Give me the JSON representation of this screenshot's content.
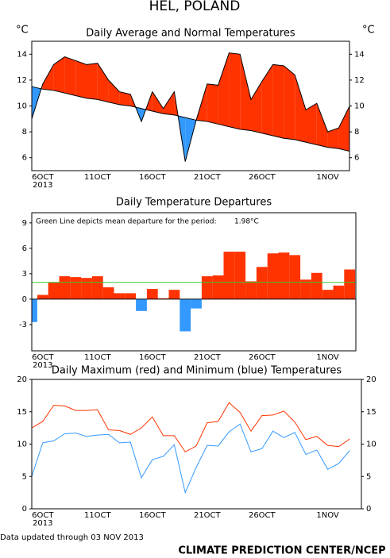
{
  "title": "HEL, POLAND",
  "chart_data": [
    {
      "type": "fill_between",
      "title": "Daily Average and Normal Temperatures",
      "y_label": "°C",
      "y2_label": "°C",
      "categories": [
        null,
        "6OCT",
        null,
        null,
        null,
        null,
        "11OCT",
        null,
        null,
        null,
        null,
        "16OCT",
        null,
        null,
        null,
        null,
        "21OCT",
        null,
        null,
        null,
        null,
        "26OCT",
        null,
        null,
        null,
        null,
        null,
        "1NOV",
        null,
        null
      ],
      "year_label": "2013",
      "series": [
        {
          "color": "#000000",
          "values": [
            9.0,
            11.7,
            13.2,
            13.8,
            13.5,
            13.2,
            13.3,
            12.0,
            11.1,
            10.9,
            8.8,
            11.1,
            9.8,
            11.1,
            5.7,
            8.9,
            11.7,
            11.6,
            14.1,
            14.0,
            10.5,
            11.9,
            13.2,
            13.1,
            12.4,
            9.7,
            10.2,
            8.0,
            8.3,
            10.0
          ]
        },
        {
          "color": "#000000",
          "values": [
            11.5,
            11.3,
            11.2,
            11.0,
            10.8,
            10.6,
            10.5,
            10.3,
            10.1,
            10.0,
            9.8,
            9.6,
            9.4,
            9.3,
            9.1,
            8.9,
            8.8,
            8.6,
            8.4,
            8.2,
            8.1,
            7.9,
            7.7,
            7.5,
            7.4,
            7.2,
            7.0,
            6.8,
            6.7,
            6.5
          ]
        }
      ],
      "above_color": "#ff3300",
      "below_color": "#3399ff",
      "ylim": [
        5,
        15
      ],
      "yticks": [
        6,
        8,
        10,
        12,
        14
      ],
      "right_ticks": true
    },
    {
      "type": "bar",
      "title": "Daily Temperature Departures",
      "annotation": "Green Line depicts mean departure for the period:",
      "mean_departure": {
        "value": 1.98,
        "label": "1.98°C"
      },
      "mean_color": "#33cc33",
      "categories": [
        null,
        "6OCT",
        null,
        null,
        null,
        null,
        "11OCT",
        null,
        null,
        null,
        null,
        "16OCT",
        null,
        null,
        null,
        null,
        "21OCT",
        null,
        null,
        null,
        null,
        "26OCT",
        null,
        null,
        null,
        null,
        null,
        "1NOV",
        null,
        null
      ],
      "year_label": "2013",
      "values": [
        -2.7,
        0.5,
        2.0,
        2.7,
        2.6,
        2.5,
        2.7,
        1.4,
        0.7,
        0.7,
        -1.4,
        1.2,
        0.1,
        1.1,
        -3.8,
        -1.1,
        2.7,
        2.8,
        5.6,
        5.6,
        2.1,
        3.8,
        5.4,
        5.5,
        5.2,
        2.3,
        3.1,
        1.1,
        1.6,
        3.5
      ],
      "positive_color": "#ff3300",
      "negative_color": "#3399ff",
      "ylim": [
        -6.1,
        10.2
      ],
      "yticks": [
        -3,
        0,
        3,
        6,
        9
      ],
      "right_ticks": false
    },
    {
      "type": "line",
      "title": "Daily Maximum (red) and Minimum (blue) Temperatures",
      "categories": [
        null,
        "6OCT",
        null,
        null,
        null,
        null,
        "11OCT",
        null,
        null,
        null,
        null,
        "16OCT",
        null,
        null,
        null,
        null,
        "21OCT",
        null,
        null,
        null,
        null,
        "26OCT",
        null,
        null,
        null,
        null,
        null,
        "1NOV",
        null,
        null
      ],
      "year_label": "2013",
      "series": [
        {
          "color": "#ff3300",
          "values": [
            12.5,
            13.5,
            16.0,
            15.9,
            15.2,
            15.2,
            15.3,
            12.2,
            12.1,
            11.5,
            12.5,
            14.2,
            11.3,
            11.3,
            8.8,
            9.7,
            13.3,
            13.5,
            16.4,
            14.9,
            12.0,
            14.4,
            14.5,
            15.1,
            13.4,
            10.7,
            11.2,
            9.8,
            9.6,
            10.8
          ]
        },
        {
          "color": "#3399ff",
          "values": [
            5.0,
            10.2,
            10.5,
            11.6,
            11.7,
            11.2,
            11.4,
            11.5,
            10.2,
            10.3,
            4.8,
            7.6,
            8.1,
            9.9,
            2.5,
            6.4,
            9.8,
            9.7,
            11.9,
            13.1,
            8.8,
            9.3,
            12.0,
            11.0,
            11.8,
            8.4,
            9.1,
            6.1,
            7.0,
            9.0
          ]
        }
      ],
      "ylim": [
        0,
        20
      ],
      "yticks": [
        0,
        5,
        10,
        15,
        20
      ],
      "right_ticks": true
    }
  ],
  "footer_note": "Data updated through 03 NOV 2013",
  "credit": "CLIMATE PREDICTION CENTER/NCEP"
}
